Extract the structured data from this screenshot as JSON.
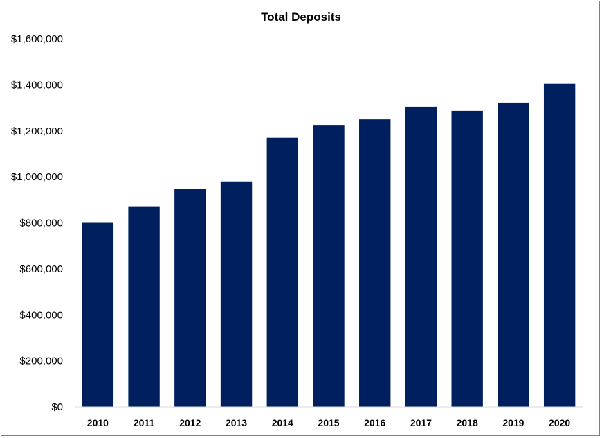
{
  "chart_data": {
    "type": "bar",
    "title": "Total Deposits",
    "xlabel": "",
    "ylabel": "",
    "categories": [
      "2010",
      "2011",
      "2012",
      "2013",
      "2014",
      "2015",
      "2016",
      "2017",
      "2018",
      "2019",
      "2020"
    ],
    "values": [
      800000,
      872000,
      947000,
      980000,
      1170000,
      1223000,
      1250000,
      1305000,
      1287000,
      1323000,
      1405000
    ],
    "ylim": [
      0,
      1600000
    ],
    "yticks": [
      0,
      200000,
      400000,
      600000,
      800000,
      1000000,
      1200000,
      1400000,
      1600000
    ],
    "ytick_labels": [
      "$0",
      "$200,000",
      "$400,000",
      "$600,000",
      "$800,000",
      "$1,000,000",
      "$1,200,000",
      "$1,400,000",
      "$1,600,000"
    ],
    "grid": false,
    "legend": "none",
    "bar_color": "#001f5f"
  }
}
